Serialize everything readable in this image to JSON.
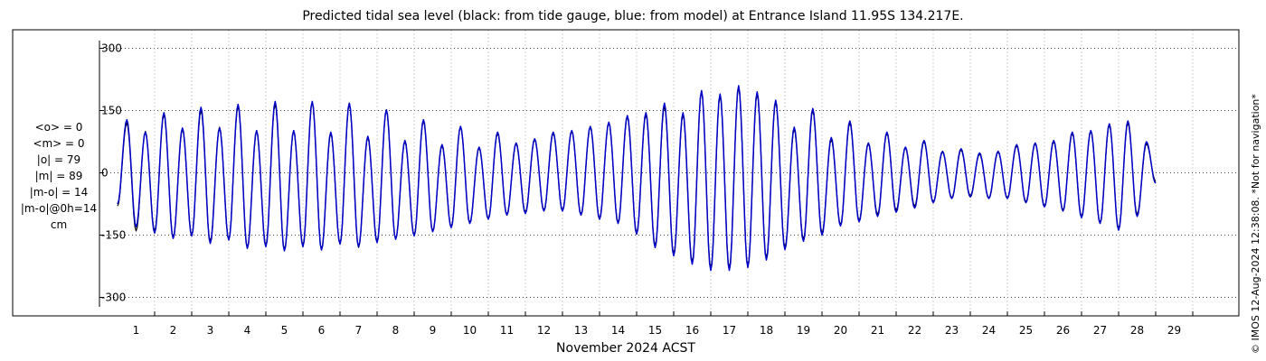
{
  "chart_data": {
    "type": "line",
    "title": "Predicted tidal sea level (black: from tide gauge, blue: from model) at Entrance Island 11.95S 134.217E.",
    "xlabel": "November 2024 ACST",
    "ylabel": "",
    "x_ticks": [
      "1",
      "2",
      "3",
      "4",
      "5",
      "6",
      "7",
      "8",
      "9",
      "10",
      "11",
      "12",
      "13",
      "14",
      "15",
      "16",
      "17",
      "18",
      "19",
      "20",
      "21",
      "22",
      "23",
      "24",
      "25",
      "26",
      "27",
      "28",
      "29"
    ],
    "xlim": [
      0,
      30
    ],
    "y_ticks": [
      "300",
      "150",
      "0",
      "-150",
      "-300"
    ],
    "ylim": [
      -330,
      330
    ],
    "grid": true,
    "series": [
      {
        "color": "#000000",
        "day_step": 0.25,
        "values": [
          -80,
          120,
          -140,
          100,
          -140,
          140,
          -155,
          105,
          -150,
          150,
          -165,
          110,
          -160,
          160,
          -180,
          100,
          -175,
          165,
          -185,
          100,
          -175,
          170,
          -185,
          95,
          -170,
          165,
          -180,
          85,
          -165,
          150,
          -160,
          75,
          -150,
          125,
          -140,
          65,
          -130,
          110,
          -120,
          60,
          -110,
          95,
          -100,
          70,
          -95,
          80,
          -90,
          95,
          -90,
          100,
          -100,
          110,
          -110,
          120,
          -120,
          135,
          -145,
          140,
          -175,
          160,
          -195,
          140,
          -215,
          195,
          -230,
          185,
          -230,
          205,
          -225,
          190,
          -205,
          170,
          -180,
          105,
          -160,
          150,
          -145,
          80,
          -125,
          120,
          -115,
          70,
          -100,
          95,
          -90,
          60,
          -80,
          75,
          -70,
          50,
          -60,
          55,
          -55,
          45,
          -60,
          50,
          -60,
          65,
          -70,
          70,
          -80,
          75,
          -90,
          95,
          -105,
          100,
          -120,
          115,
          -135,
          120,
          -100,
          70,
          -20
        ],
        "step_ms": 52
      },
      {
        "color": "#0000c8",
        "day_step": 0.25,
        "values": [
          -75,
          128,
          -130,
          98,
          -145,
          145,
          -158,
          108,
          -152,
          158,
          -170,
          108,
          -162,
          165,
          -182,
          102,
          -178,
          172,
          -188,
          102,
          -178,
          172,
          -186,
          98,
          -172,
          168,
          -178,
          88,
          -168,
          152,
          -160,
          78,
          -152,
          128,
          -142,
          68,
          -132,
          112,
          -122,
          62,
          -112,
          98,
          -102,
          72,
          -98,
          82,
          -92,
          98,
          -92,
          102,
          -102,
          112,
          -112,
          122,
          -122,
          138,
          -148,
          145,
          -180,
          168,
          -200,
          145,
          -220,
          198,
          -235,
          190,
          -235,
          210,
          -228,
          195,
          -210,
          175,
          -185,
          110,
          -165,
          155,
          -150,
          85,
          -128,
          125,
          -118,
          72,
          -105,
          98,
          -95,
          62,
          -85,
          78,
          -72,
          52,
          -62,
          58,
          -58,
          48,
          -62,
          52,
          -62,
          68,
          -72,
          72,
          -82,
          78,
          -92,
          98,
          -108,
          102,
          -122,
          118,
          -138,
          125,
          -105,
          75,
          -25
        ],
        "step_ms": 52
      }
    ]
  },
  "stats": {
    "mean_obs": "<o> = 0",
    "mean_model": "<m> = 0",
    "abs_obs": "|o| = 79",
    "abs_model": "|m| = 89",
    "abs_diff": "|m-o| = 14",
    "abs_diff_0h": "|m-o|@0h=14",
    "unit": "cm"
  },
  "credit": "© IMOS 12-Aug-2024 12:38:08. *Not for navigation*"
}
